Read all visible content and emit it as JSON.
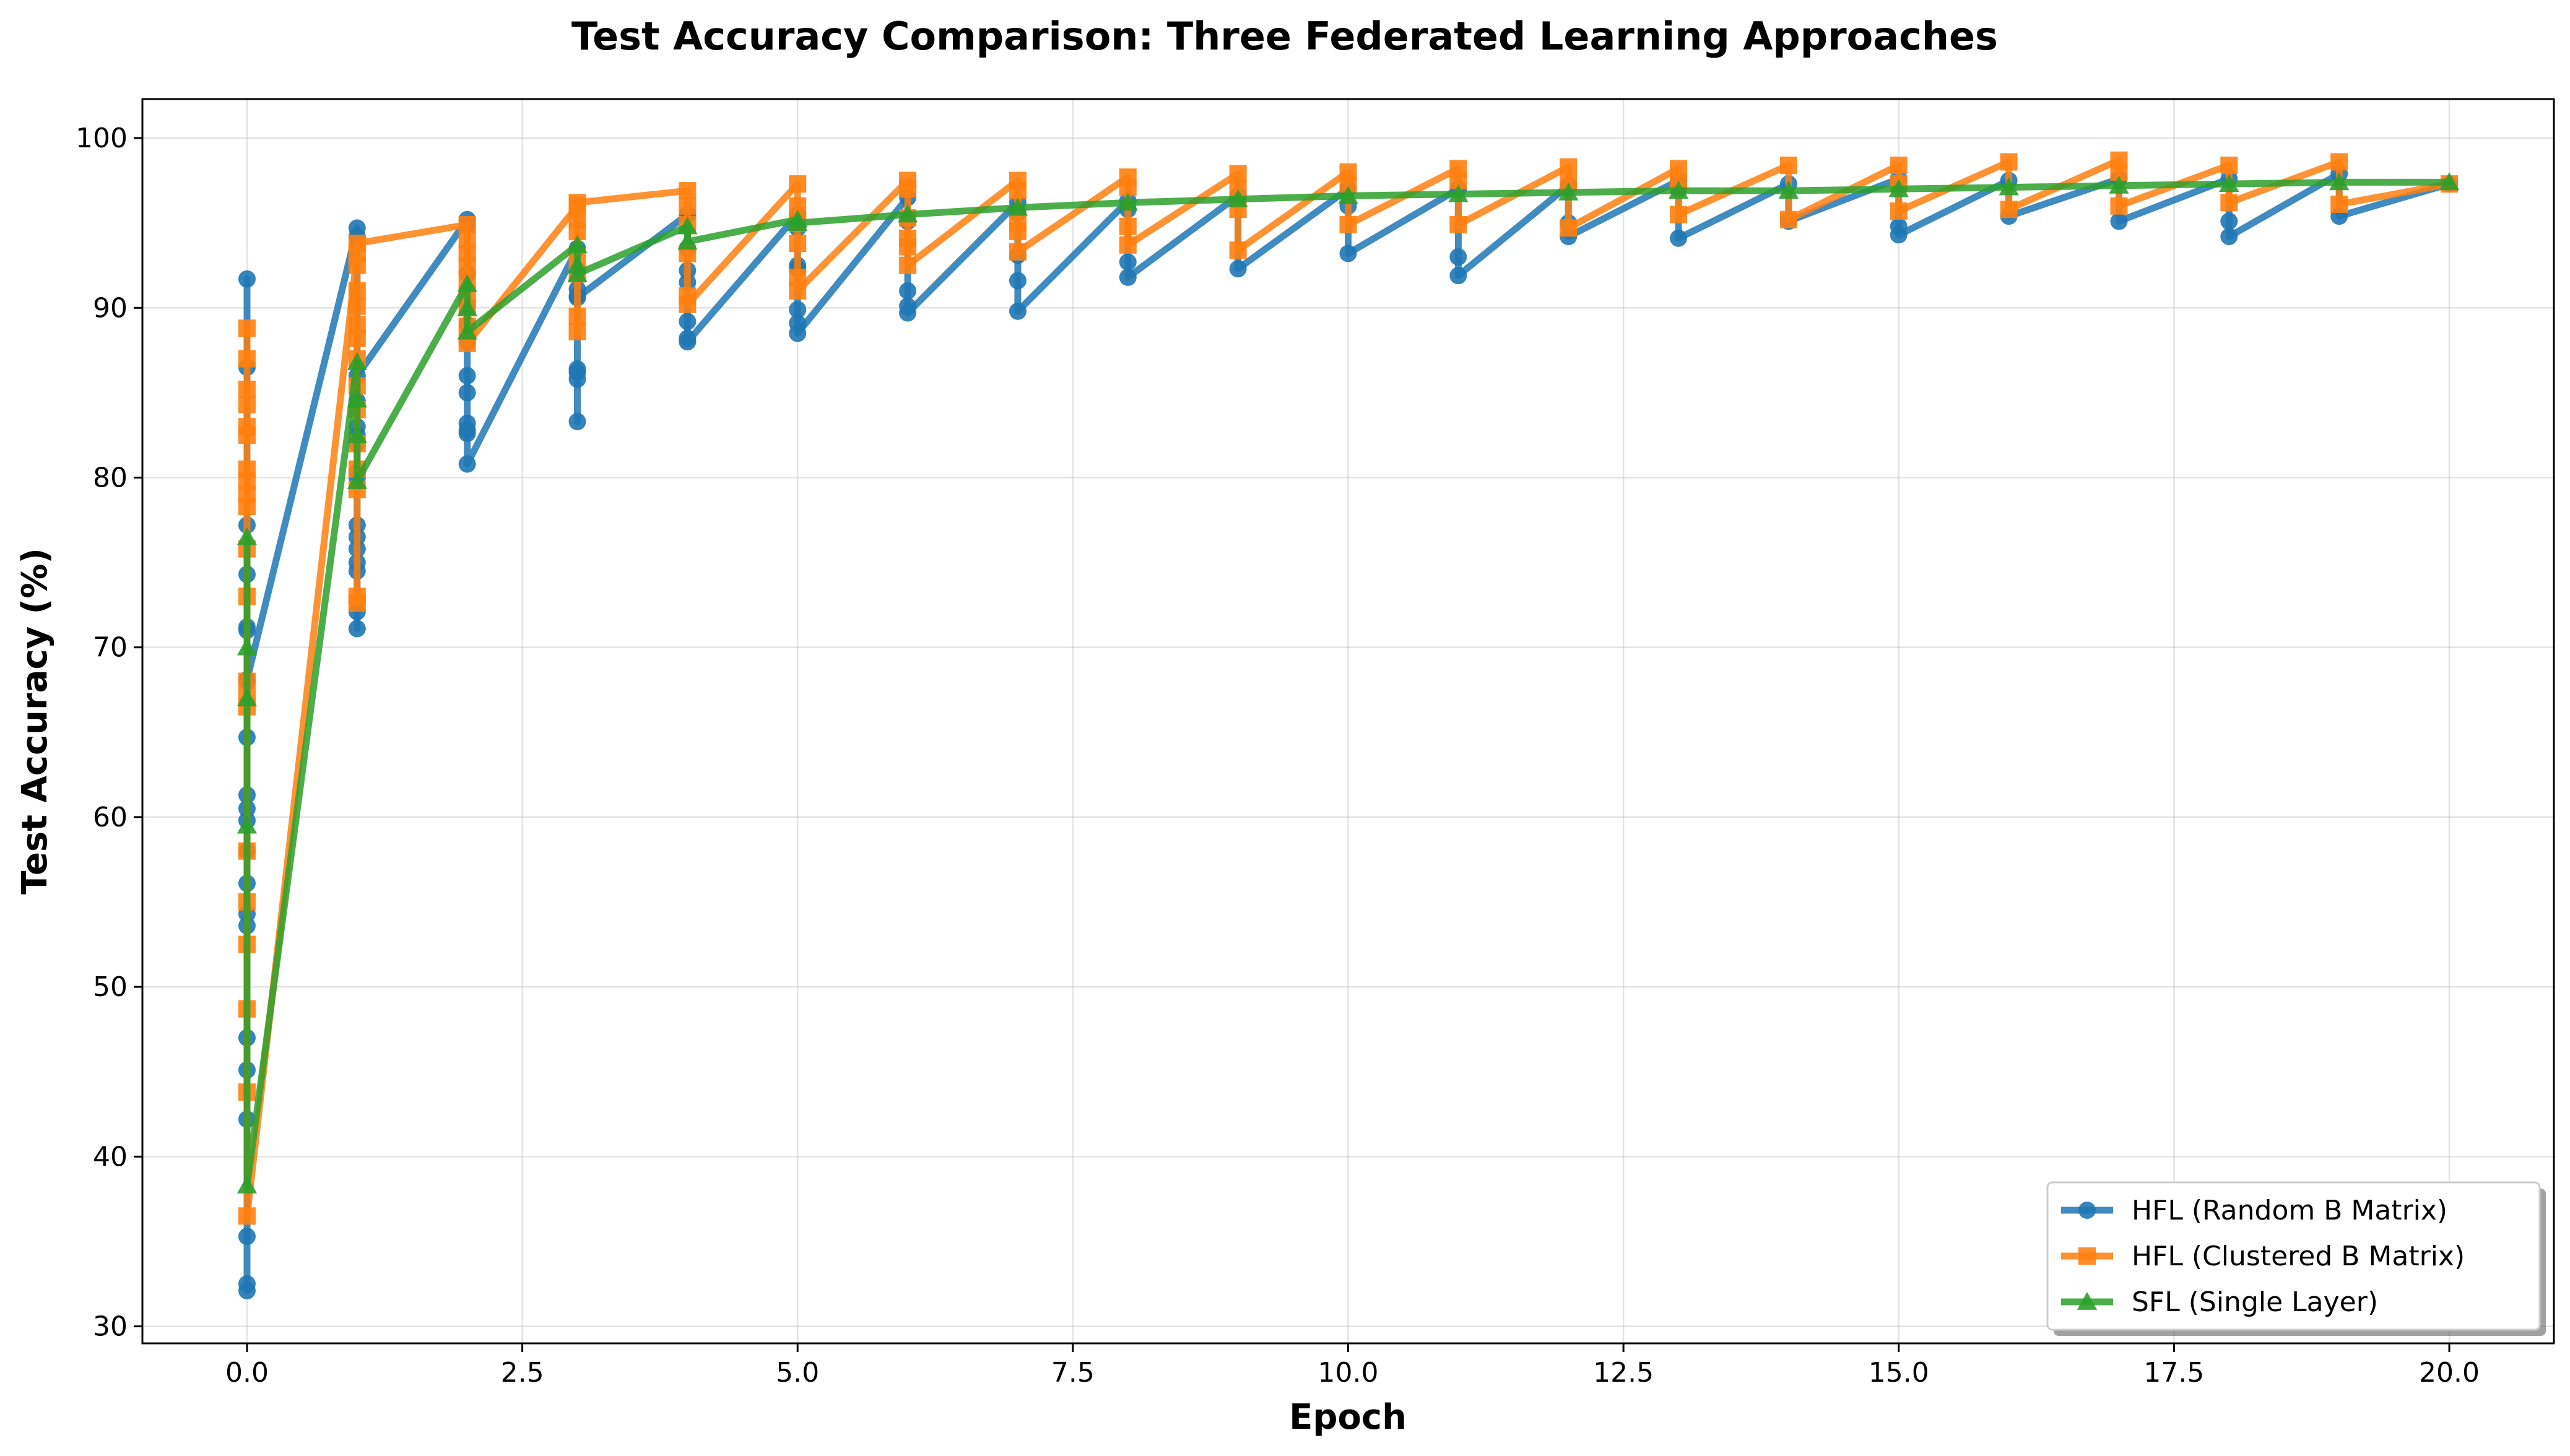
{
  "chart_data": {
    "type": "line",
    "title": "Test Accuracy Comparison: Three Federated Learning Approaches",
    "xlabel": "Epoch",
    "ylabel": "Test Accuracy (%)",
    "xlim": [
      -0.95,
      20.95
    ],
    "ylim": [
      29.0,
      102.3
    ],
    "xticks": [
      0,
      2.5,
      5,
      7.5,
      10,
      12.5,
      15,
      17.5,
      20
    ],
    "xtick_labels": [
      "0.0",
      "2.5",
      "5.0",
      "7.5",
      "10.0",
      "12.5",
      "15.0",
      "17.5",
      "20.0"
    ],
    "yticks": [
      30,
      40,
      50,
      60,
      70,
      80,
      90,
      100
    ],
    "ytick_labels": [
      "30",
      "40",
      "50",
      "60",
      "70",
      "80",
      "90",
      "100"
    ],
    "grid": true,
    "legend_position": "lower-right",
    "series": [
      {
        "name": "HFL (Random B Matrix)",
        "color": "#1f77b4",
        "marker": "circle",
        "x": [
          0,
          0,
          0,
          0,
          0,
          0,
          0,
          0,
          0,
          0,
          0,
          0,
          0,
          0,
          0,
          0,
          0,
          0,
          0,
          0,
          0,
          0,
          1,
          1,
          1,
          1,
          1,
          1,
          1,
          1,
          1,
          1,
          1,
          1,
          1,
          1,
          1,
          1,
          2,
          2,
          2,
          2,
          2,
          2,
          2,
          2,
          2,
          2,
          2,
          2,
          3,
          3,
          3,
          3,
          3,
          3,
          3,
          3,
          3,
          4,
          4,
          4,
          4,
          4,
          4,
          4,
          5,
          5,
          5,
          5,
          5,
          5,
          5,
          6,
          6,
          6,
          6,
          6,
          7,
          7,
          7,
          7,
          7,
          8,
          8,
          8,
          8,
          9,
          9,
          9,
          10,
          10,
          10,
          11,
          11,
          11,
          12,
          12,
          12,
          13,
          13,
          13,
          14,
          14,
          15,
          15,
          15,
          16,
          16,
          17,
          17,
          18,
          18,
          18,
          19,
          19,
          20
        ],
        "y": [
          91.7,
          86.5,
          77.2,
          74.3,
          71.2,
          68.0,
          64.7,
          61.3,
          60.5,
          59.8,
          58.0,
          56.1,
          54.3,
          53.6,
          47.0,
          45.1,
          42.2,
          35.3,
          32.5,
          32.1,
          71.0,
          68.1,
          94.7,
          94.2,
          82.0,
          80.3,
          80.0,
          77.2,
          76.5,
          75.8,
          75.0,
          74.5,
          72.1,
          71.1,
          84.5,
          83.0,
          82.5,
          86.0,
          95.2,
          94.9,
          92.0,
          90.1,
          89.0,
          88.0,
          86.0,
          85.0,
          83.2,
          82.8,
          82.6,
          80.8,
          93.5,
          92.2,
          91.1,
          90.7,
          86.4,
          86.2,
          85.8,
          83.3,
          90.6,
          95.5,
          93.5,
          92.2,
          91.5,
          89.2,
          88.2,
          88.0,
          95.5,
          94.7,
          92.5,
          92.3,
          89.9,
          89.1,
          88.5,
          96.5,
          95.1,
          91.0,
          90.1,
          89.7,
          96.2,
          95.6,
          93.1,
          91.6,
          89.8,
          96.3,
          95.8,
          92.7,
          91.8,
          96.6,
          96.3,
          92.3,
          97.0,
          96.0,
          93.2,
          97.0,
          93.0,
          91.9,
          97.2,
          95.0,
          94.2,
          97.5,
          97.0,
          94.1,
          97.3,
          95.1,
          97.6,
          94.8,
          94.3,
          97.5,
          95.4,
          97.6,
          95.1,
          97.6,
          95.1,
          94.2,
          97.9,
          95.4,
          97.3
        ]
      },
      {
        "name": "HFL (Clustered B Matrix)",
        "color": "#ff7f0e",
        "marker": "square",
        "x": [
          0,
          0,
          0,
          0,
          0,
          0,
          0,
          0,
          0,
          0,
          0,
          0,
          0,
          0,
          0,
          0,
          0,
          0,
          0,
          0,
          0,
          1,
          1,
          1,
          1,
          1,
          1,
          1,
          1,
          1,
          1,
          1,
          1,
          1,
          1,
          1,
          2,
          2,
          2,
          2,
          2,
          2,
          2,
          2,
          2,
          3,
          3,
          3,
          3,
          3,
          3,
          3,
          3,
          4,
          4,
          4,
          4,
          4,
          4,
          5,
          5,
          5,
          5,
          5,
          5,
          6,
          6,
          6,
          6,
          6,
          6,
          7,
          7,
          7,
          7,
          7,
          8,
          8,
          8,
          8,
          9,
          9,
          9,
          9,
          10,
          10,
          10,
          11,
          11,
          11,
          12,
          12,
          12,
          13,
          13,
          13,
          14,
          14,
          15,
          15,
          15,
          16,
          16,
          17,
          17,
          17,
          18,
          18,
          19,
          19,
          20
        ],
        "y": [
          88.8,
          87.0,
          85.2,
          84.3,
          83.0,
          82.5,
          80.5,
          79.8,
          79.0,
          78.3,
          75.8,
          73.0,
          68.0,
          67.0,
          66.5,
          58.0,
          55.0,
          52.5,
          48.7,
          43.8,
          36.5,
          93.2,
          92.5,
          91.0,
          90.1,
          89.0,
          88.2,
          87.0,
          85.4,
          84.0,
          82.0,
          80.5,
          79.3,
          73.0,
          72.6,
          93.8,
          94.9,
          94.0,
          93.2,
          92.5,
          91.7,
          90.8,
          90.0,
          88.9,
          87.9,
          96.0,
          95.2,
          94.5,
          93.0,
          92.0,
          89.5,
          88.6,
          96.2,
          96.9,
          96.0,
          94.9,
          93.2,
          90.7,
          90.2,
          97.3,
          96.0,
          95.0,
          93.8,
          91.8,
          91.0,
          97.5,
          97.0,
          95.3,
          94.1,
          93.6,
          92.5,
          97.5,
          96.9,
          95.0,
          94.5,
          93.3,
          97.7,
          97.1,
          94.8,
          93.7,
          97.9,
          97.0,
          95.8,
          93.4,
          98.0,
          97.3,
          94.9,
          98.2,
          97.5,
          94.9,
          98.3,
          97.3,
          94.7,
          98.2,
          97.4,
          95.5,
          98.4,
          95.2,
          98.4,
          97.3,
          95.7,
          98.6,
          95.8,
          98.7,
          98.0,
          96.0,
          98.4,
          96.2,
          98.6,
          96.1,
          97.3
        ]
      },
      {
        "name": "SFL (Single Layer)",
        "color": "#2ca02c",
        "marker": "triangle",
        "x": [
          0,
          0,
          0,
          0,
          0,
          1,
          1,
          1,
          1,
          2,
          2,
          2,
          3,
          3,
          3,
          4,
          4,
          5,
          5,
          6,
          7,
          8,
          9,
          10,
          11,
          12,
          13,
          14,
          15,
          16,
          17,
          18,
          19,
          20
        ],
        "y": [
          76.5,
          70.0,
          67.0,
          59.5,
          38.3,
          86.8,
          84.6,
          82.5,
          79.8,
          91.4,
          90.0,
          88.6,
          93.7,
          92.5,
          92.0,
          94.8,
          93.9,
          95.2,
          95.0,
          95.5,
          95.9,
          96.2,
          96.4,
          96.6,
          96.7,
          96.8,
          96.9,
          96.9,
          97.0,
          97.1,
          97.2,
          97.3,
          97.4,
          97.4
        ]
      }
    ]
  }
}
